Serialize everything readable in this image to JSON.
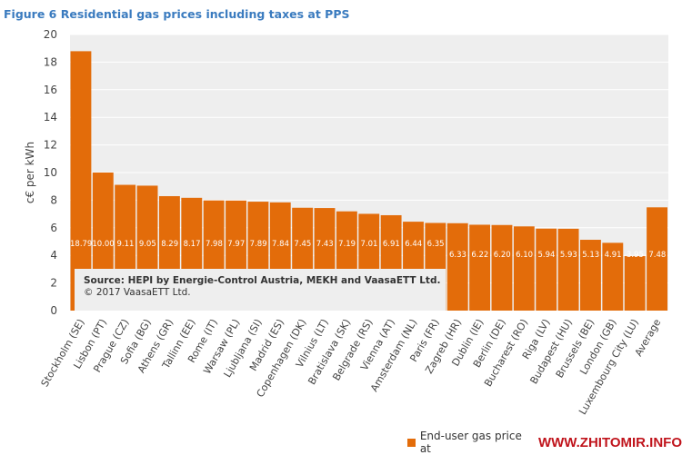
{
  "chart_data": {
    "type": "bar",
    "title": "Figure 6 Residential gas prices including taxes at PPS",
    "xlabel": "",
    "ylabel": "c€ per kWh",
    "ylim": [
      0,
      20
    ],
    "yticks": [
      0,
      2,
      4,
      6,
      8,
      10,
      12,
      14,
      16,
      18,
      20
    ],
    "grid": true,
    "legend_placement": "bottom-right",
    "bar_color": "#e36c0a",
    "categories": [
      "Stockholm (SE)",
      "Lisbon (PT)",
      "Prague (CZ)",
      "Sofia (BG)",
      "Athens (GR)",
      "Tallinn (EE)",
      "Rome (IT)",
      "Warsaw (PL)",
      "Ljubljana (SI)",
      "Madrid (ES)",
      "Copenhagen (DK)",
      "Vilnius (LT)",
      "Bratislava (SK)",
      "Belgrade (RS)",
      "Vienna (AT)",
      "Amsterdam (NL)",
      "Paris (FR)",
      "Zagreb (HR)",
      "Dublin (IE)",
      "Berlin (DE)",
      "Bucharest (RO)",
      "Riga (LV)",
      "Budapest (HU)",
      "Brussels (BE)",
      "London (GB)",
      "Luxembourg City (LU)",
      "Average"
    ],
    "values": [
      18.79,
      10.0,
      9.11,
      9.05,
      8.29,
      8.17,
      7.98,
      7.97,
      7.89,
      7.84,
      7.45,
      7.43,
      7.19,
      7.01,
      6.91,
      6.44,
      6.35,
      6.33,
      6.22,
      6.2,
      6.1,
      5.94,
      5.93,
      5.13,
      4.91,
      3.95,
      7.48
    ],
    "data_labels": [
      "18.79",
      "10.00",
      "9.11",
      "9.05",
      "8.29",
      "8.17",
      "7.98",
      "7.97",
      "7.89",
      "7.84",
      "7.45",
      "7.43",
      "7.19",
      "7.01",
      "6.91",
      "6.44",
      "6.35",
      "6.33",
      "6.22",
      "6.20",
      "6.10",
      "5.94",
      "5.93",
      "5.13",
      "4.91",
      "3.95",
      "7.48"
    ],
    "series": [
      {
        "name": "End-user gas price at",
        "values": [
          18.79,
          10.0,
          9.11,
          9.05,
          8.29,
          8.17,
          7.98,
          7.97,
          7.89,
          7.84,
          7.45,
          7.43,
          7.19,
          7.01,
          6.91,
          6.44,
          6.35,
          6.33,
          6.22,
          6.2,
          6.1,
          5.94,
          5.93,
          5.13,
          4.91,
          3.95,
          7.48
        ]
      }
    ],
    "annotation": {
      "source": "Source: HEPI by Energie-Control Austria, MEKH and VaasaETT Ltd.",
      "copyright": "© 2017 VaasaETT Ltd."
    }
  },
  "watermark": "WWW.ZHITOMIR.INFO"
}
